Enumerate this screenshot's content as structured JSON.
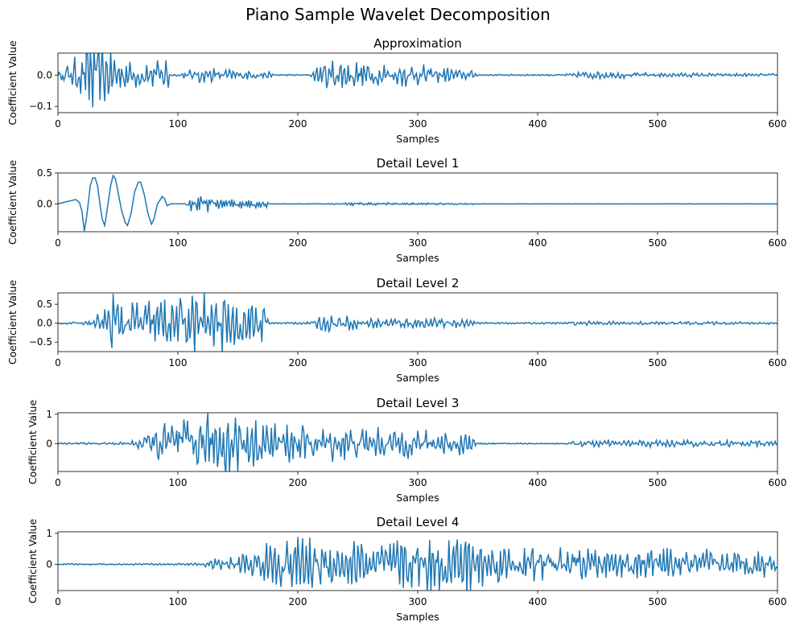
{
  "figure": {
    "suptitle": "Piano Sample Wavelet Decomposition"
  },
  "chart_data": [
    {
      "type": "line",
      "title": "Approximation",
      "xlabel": "Samples",
      "ylabel": "Coefficient Value",
      "xlim": [
        0,
        600
      ],
      "ylim": [
        -0.12,
        0.07
      ],
      "xticks": [
        0,
        100,
        200,
        300,
        400,
        500,
        600
      ],
      "yticks": [
        -0.1,
        0.0
      ],
      "ytick_labels": [
        "−0.1",
        "0.0"
      ],
      "series": [
        {
          "color": "#1f77b4",
          "envelope": [
            [
              0,
              0.004
            ],
            [
              6,
              0.03
            ],
            [
              22,
              0.065
            ],
            [
              24,
              0.12
            ],
            [
              45,
              0.06
            ],
            [
              60,
              0.04
            ],
            [
              92,
              0.05
            ],
            [
              93,
              0.003
            ],
            [
              100,
              0.004
            ],
            [
              110,
              0.015
            ],
            [
              120,
              0.025
            ],
            [
              140,
              0.015
            ],
            [
              175,
              0.01
            ],
            [
              180,
              0.002
            ],
            [
              210,
              0.002
            ],
            [
              215,
              0.02
            ],
            [
              225,
              0.045
            ],
            [
              250,
              0.04
            ],
            [
              300,
              0.03
            ],
            [
              345,
              0.012
            ],
            [
              350,
              0.002
            ],
            [
              420,
              0.002
            ],
            [
              430,
              0.006
            ],
            [
              440,
              0.012
            ],
            [
              500,
              0.006
            ],
            [
              600,
              0.004
            ]
          ]
        }
      ]
    },
    {
      "type": "line",
      "title": "Detail Level 1",
      "xlabel": "Samples",
      "ylabel": "Coefficient Value",
      "xlim": [
        0,
        600
      ],
      "ylim": [
        -0.45,
        0.5
      ],
      "xticks": [
        0,
        100,
        200,
        300,
        400,
        500,
        600
      ],
      "yticks": [
        0.0,
        0.5
      ],
      "ytick_labels": [
        "0.0",
        "0.5"
      ],
      "series": [
        {
          "color": "#1f77b4",
          "points": [
            [
              0,
              0.0
            ],
            [
              8,
              0.04
            ],
            [
              15,
              0.07
            ],
            [
              18,
              0.02
            ],
            [
              20,
              -0.12
            ],
            [
              22,
              -0.44
            ],
            [
              24,
              -0.2
            ],
            [
              27,
              0.3
            ],
            [
              29,
              0.42
            ],
            [
              31,
              0.42
            ],
            [
              33,
              0.3
            ],
            [
              35,
              0.0
            ],
            [
              37,
              -0.25
            ],
            [
              39,
              -0.35
            ],
            [
              41,
              -0.1
            ],
            [
              44,
              0.3
            ],
            [
              46,
              0.46
            ],
            [
              48,
              0.4
            ],
            [
              50,
              0.2
            ],
            [
              53,
              -0.1
            ],
            [
              56,
              -0.3
            ],
            [
              58,
              -0.35
            ],
            [
              61,
              -0.15
            ],
            [
              64,
              0.2
            ],
            [
              67,
              0.35
            ],
            [
              69,
              0.35
            ],
            [
              72,
              0.15
            ],
            [
              75,
              -0.15
            ],
            [
              78,
              -0.33
            ],
            [
              80,
              -0.25
            ],
            [
              83,
              0.0
            ],
            [
              87,
              0.12
            ],
            [
              89,
              0.08
            ],
            [
              91,
              -0.03
            ],
            [
              94,
              0.0
            ],
            [
              100,
              0.0
            ],
            [
              104,
              0.0
            ]
          ],
          "noise_envelope": [
            [
              104,
              0.0
            ],
            [
              106,
              0.05
            ],
            [
              110,
              0.12
            ],
            [
              125,
              0.1
            ],
            [
              140,
              0.06
            ],
            [
              160,
              0.06
            ],
            [
              175,
              0.05
            ],
            [
              176,
              0.003
            ],
            [
              225,
              0.005
            ],
            [
              240,
              0.02
            ],
            [
              300,
              0.015
            ],
            [
              345,
              0.012
            ],
            [
              350,
              0.003
            ],
            [
              600,
              0.002
            ]
          ]
        }
      ]
    },
    {
      "type": "line",
      "title": "Detail Level 2",
      "xlabel": "Samples",
      "ylabel": "Coefficient Value",
      "xlim": [
        0,
        600
      ],
      "ylim": [
        -0.75,
        0.8
      ],
      "xticks": [
        0,
        100,
        200,
        300,
        400,
        500,
        600
      ],
      "yticks": [
        -0.5,
        0.0,
        0.5
      ],
      "ytick_labels": [
        "−0.5",
        "0.0",
        "0.5"
      ],
      "series": [
        {
          "color": "#1f77b4",
          "envelope": [
            [
              0,
              0.02
            ],
            [
              25,
              0.04
            ],
            [
              30,
              0.1
            ],
            [
              40,
              0.5
            ],
            [
              45,
              0.72
            ],
            [
              60,
              0.6
            ],
            [
              80,
              0.55
            ],
            [
              100,
              0.6
            ],
            [
              120,
              0.72
            ],
            [
              150,
              0.6
            ],
            [
              172,
              0.5
            ],
            [
              176,
              0.02
            ],
            [
              212,
              0.03
            ],
            [
              218,
              0.2
            ],
            [
              250,
              0.15
            ],
            [
              300,
              0.12
            ],
            [
              345,
              0.1
            ],
            [
              350,
              0.02
            ],
            [
              425,
              0.02
            ],
            [
              430,
              0.05
            ],
            [
              500,
              0.04
            ],
            [
              600,
              0.03
            ]
          ]
        }
      ]
    },
    {
      "type": "line",
      "title": "Detail Level 3",
      "xlabel": "Samples",
      "ylabel": "Coefficient Value",
      "xlim": [
        0,
        600
      ],
      "ylim": [
        -0.95,
        1.05
      ],
      "xticks": [
        0,
        100,
        200,
        300,
        400,
        500,
        600
      ],
      "yticks": [
        0,
        1
      ],
      "ytick_labels": [
        "0",
        "1"
      ],
      "series": [
        {
          "color": "#1f77b4",
          "envelope": [
            [
              0,
              0.03
            ],
            [
              60,
              0.04
            ],
            [
              65,
              0.15
            ],
            [
              80,
              0.5
            ],
            [
              95,
              0.8
            ],
            [
              120,
              0.95
            ],
            [
              145,
              0.95
            ],
            [
              170,
              0.7
            ],
            [
              200,
              0.55
            ],
            [
              240,
              0.5
            ],
            [
              280,
              0.45
            ],
            [
              320,
              0.4
            ],
            [
              340,
              0.35
            ],
            [
              345,
              0.2
            ],
            [
              350,
              0.02
            ],
            [
              425,
              0.02
            ],
            [
              430,
              0.1
            ],
            [
              500,
              0.12
            ],
            [
              600,
              0.08
            ]
          ]
        }
      ]
    },
    {
      "type": "line",
      "title": "Detail Level 4",
      "xlabel": "Samples",
      "ylabel": "Coefficient Value",
      "xlim": [
        0,
        600
      ],
      "ylim": [
        -0.85,
        1.05
      ],
      "xticks": [
        0,
        100,
        200,
        300,
        400,
        500,
        600
      ],
      "yticks": [
        0,
        1
      ],
      "ytick_labels": [
        "0",
        "1"
      ],
      "series": [
        {
          "color": "#1f77b4",
          "envelope": [
            [
              0,
              0.02
            ],
            [
              118,
              0.03
            ],
            [
              125,
              0.1
            ],
            [
              150,
              0.3
            ],
            [
              170,
              0.5
            ],
            [
              200,
              0.9
            ],
            [
              230,
              0.6
            ],
            [
              260,
              0.75
            ],
            [
              300,
              0.7
            ],
            [
              340,
              0.9
            ],
            [
              360,
              0.55
            ],
            [
              400,
              0.5
            ],
            [
              450,
              0.45
            ],
            [
              500,
              0.45
            ],
            [
              550,
              0.4
            ],
            [
              600,
              0.35
            ]
          ]
        }
      ]
    }
  ]
}
